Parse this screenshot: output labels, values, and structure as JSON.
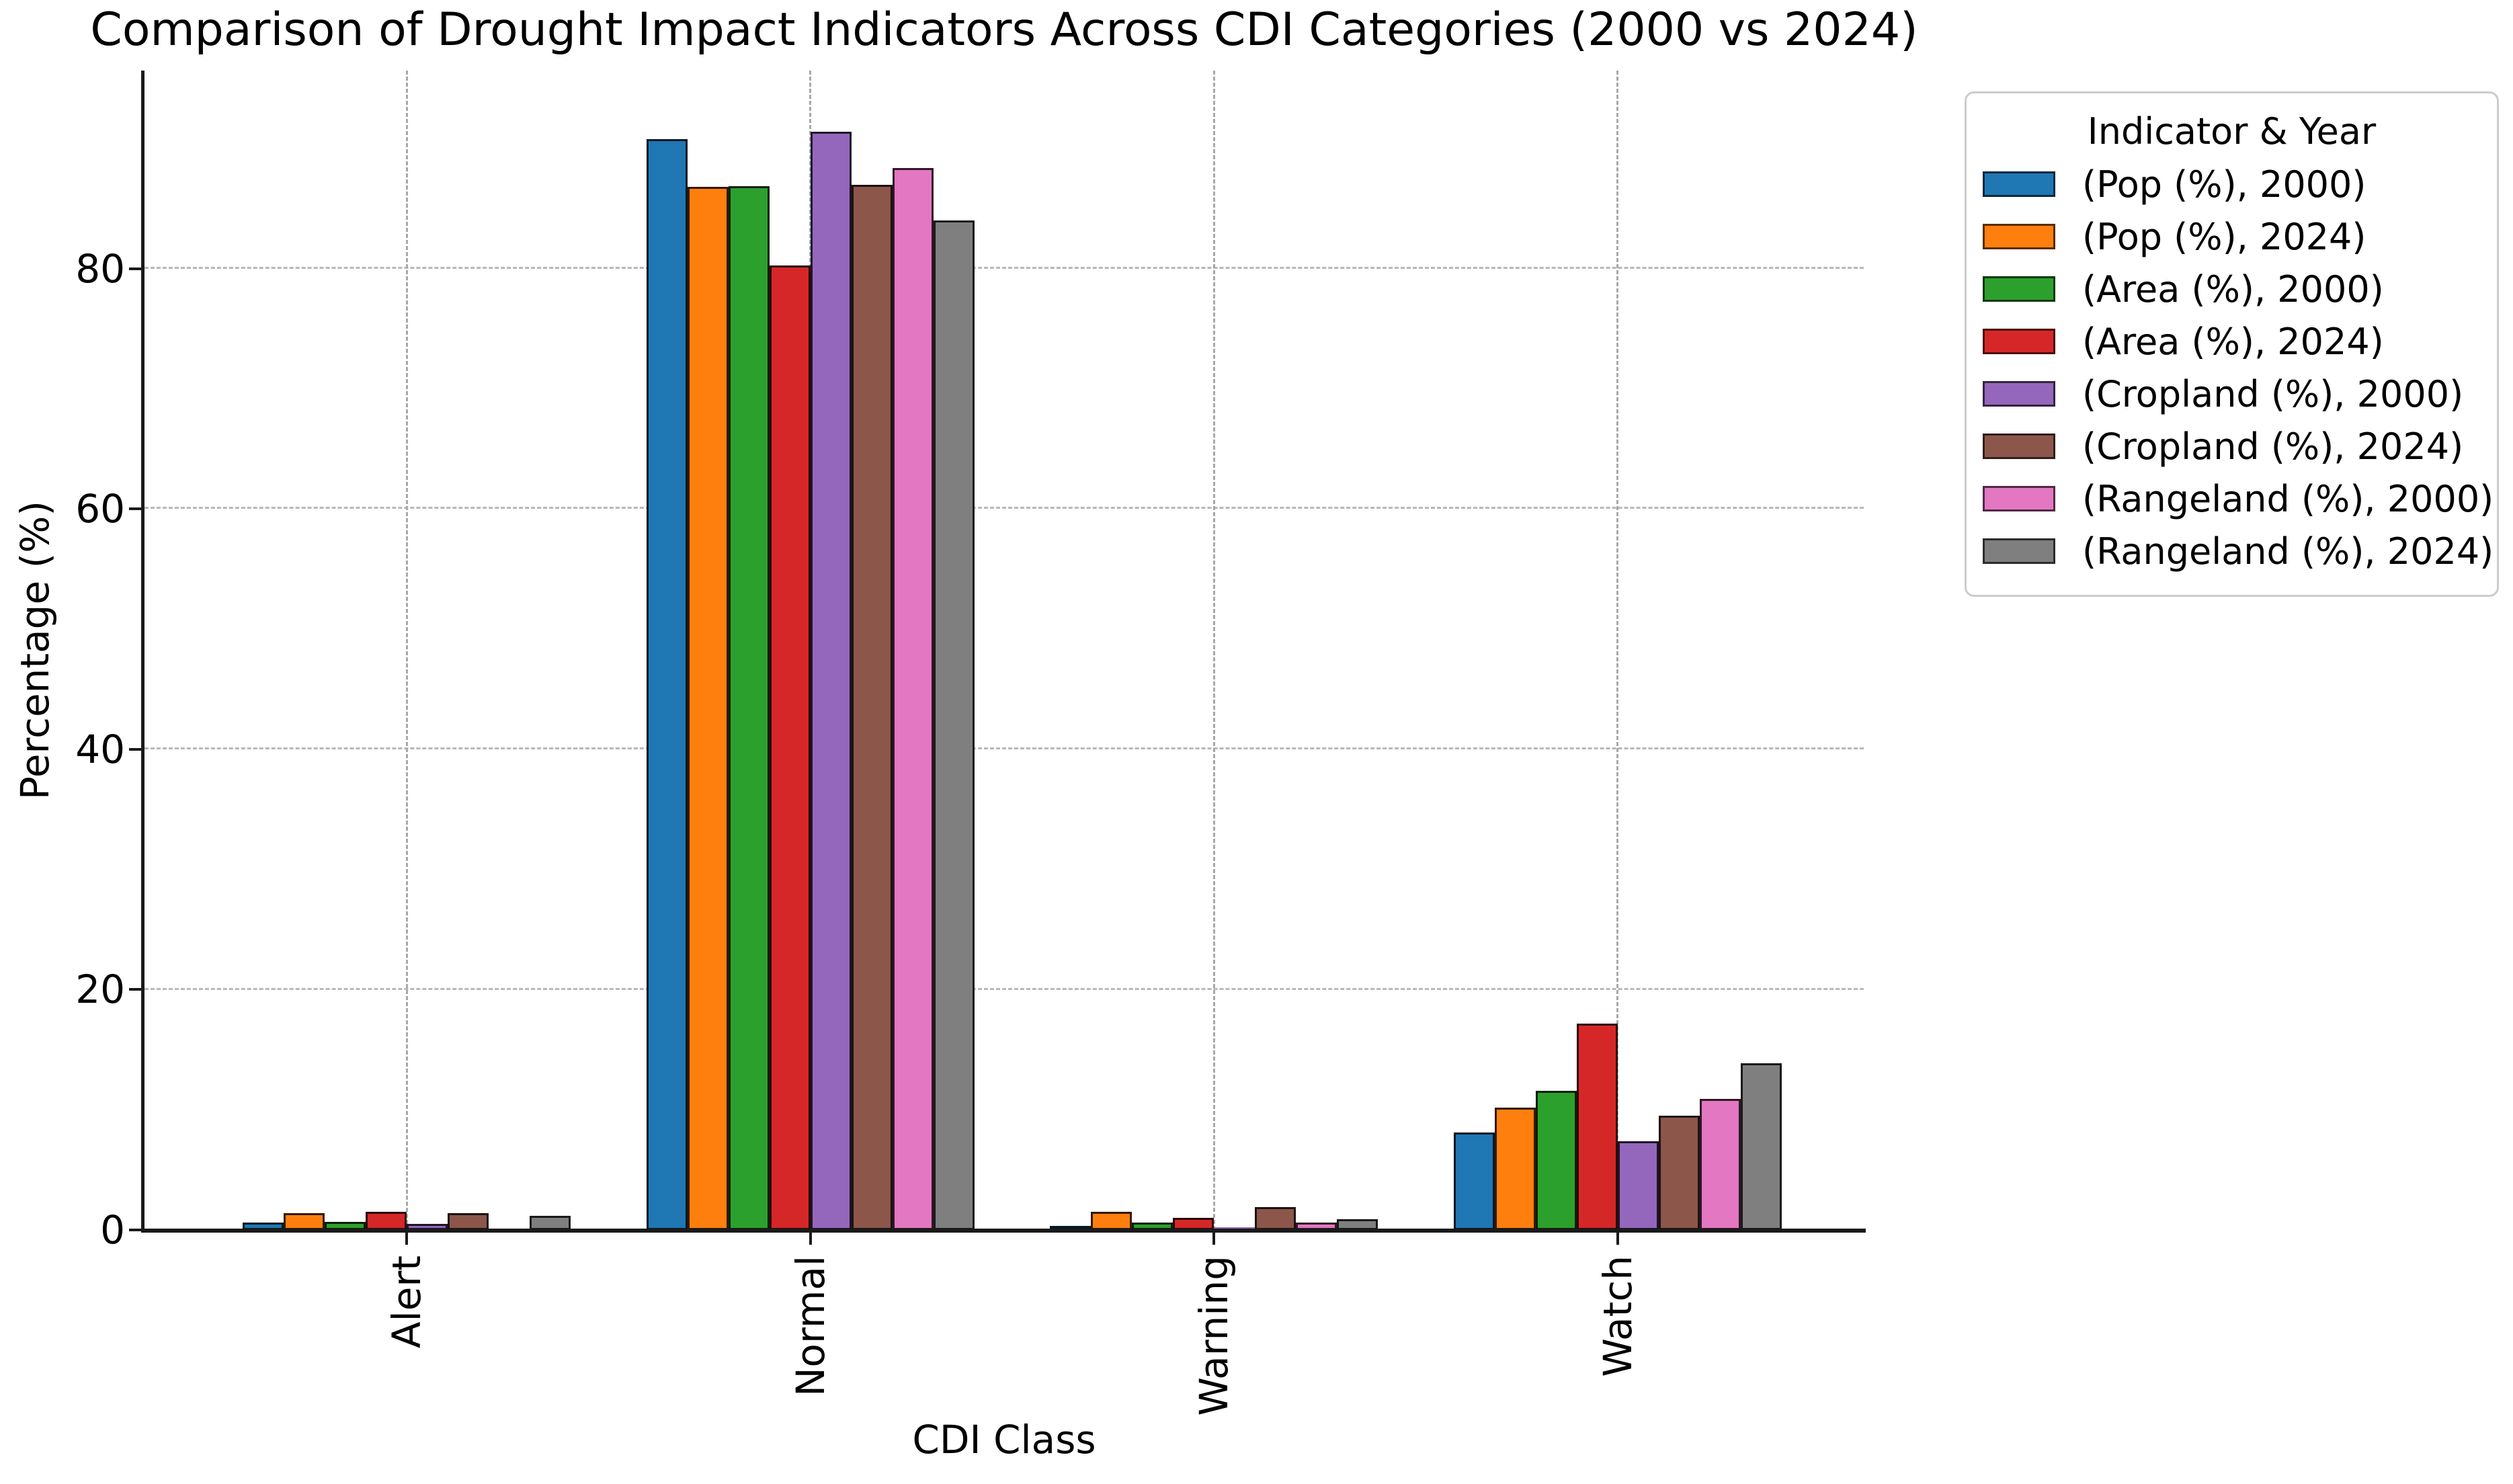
{
  "chart_data": {
    "type": "bar",
    "title": "Comparison of Drought Impact Indicators Across CDI Categories (2000 vs 2024)",
    "xlabel": "CDI Class",
    "ylabel": "Percentage (%)",
    "categories": [
      "Alert",
      "Normal",
      "Warning",
      "Watch"
    ],
    "series": [
      {
        "name": "(Pop (%), 2000)",
        "color": "#1f77b4",
        "values": [
          0.6,
          90.8,
          0.3,
          8.1
        ]
      },
      {
        "name": "(Pop (%), 2024)",
        "color": "#ff7f0e",
        "values": [
          1.4,
          86.8,
          1.5,
          10.2
        ]
      },
      {
        "name": "(Area (%), 2000)",
        "color": "#2ca02c",
        "values": [
          0.7,
          86.9,
          0.6,
          11.6
        ]
      },
      {
        "name": "(Area (%), 2024)",
        "color": "#d62728",
        "values": [
          1.5,
          80.3,
          1.0,
          17.2
        ]
      },
      {
        "name": "(Cropland (%), 2000)",
        "color": "#9467bd",
        "values": [
          0.5,
          91.4,
          0.2,
          7.4
        ]
      },
      {
        "name": "(Cropland (%), 2024)",
        "color": "#8c564b",
        "values": [
          1.4,
          87.0,
          1.9,
          9.5
        ]
      },
      {
        "name": "(Rangeland (%), 2000)",
        "color": "#e377c2",
        "values": [
          0.0,
          88.4,
          0.6,
          10.9
        ]
      },
      {
        "name": "(Rangeland (%), 2024)",
        "color": "#7f7f7f",
        "values": [
          1.2,
          84.0,
          0.9,
          13.9
        ]
      }
    ],
    "legend": {
      "title": "Indicator & Year",
      "position": "upper right"
    },
    "yticks": [
      0,
      20,
      40,
      60,
      80
    ],
    "ylim": [
      0,
      96.5
    ],
    "grid": {
      "horizontal": true,
      "vertical": true,
      "style": "dashed",
      "color": "#b0b0b0"
    },
    "bar_edge_color": "rgba(0,0,0,0.8)"
  }
}
